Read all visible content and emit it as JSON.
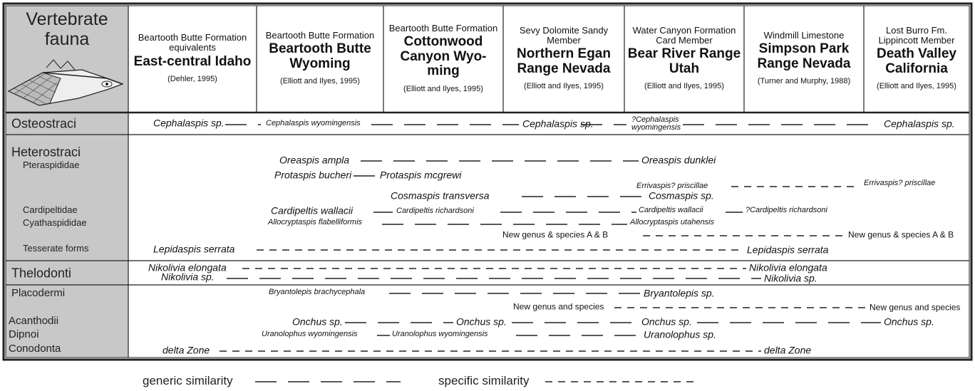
{
  "corner": "Vertebrate fauna",
  "columns": [
    {
      "formation": "Beartooth Butte Formation equivalents",
      "locality": "East-central Idaho",
      "reference": "(Dehler, 1995)"
    },
    {
      "formation": "Beartooth Butte Formation",
      "locality": "Beartooth Butte Wyoming",
      "reference": "(Elliott and Ilyes, 1995)"
    },
    {
      "formation": "Beartooth Butte Formation",
      "locality": "Cottonwood Canyon Wyo-ming",
      "reference": "(Elliott and Ilyes, 1995)"
    },
    {
      "formation": "Sevy Dolomite Sandy Member",
      "locality": "Northern Egan Range Nevada",
      "reference": "(Elliott and Ilyes, 1995)"
    },
    {
      "formation": "Water Canyon Formation Card Member",
      "locality": "Bear River Range Utah",
      "reference": "(Elliott and Ilyes, 1995)"
    },
    {
      "formation": "Windmill Limestone",
      "locality": "Simpson Park Range Nevada",
      "reference": "(Turner and Murphy, 1988)"
    },
    {
      "formation": "Lost Burro Fm. Lippincott Member",
      "locality": "Death Valley California",
      "reference": "(Elliott and Ilyes, 1995)"
    }
  ],
  "groups": [
    "Osteostraci",
    "Heterostraci",
    "Pteraspididae",
    "Cardipeltidae",
    "Cyathaspididae",
    "Tesserate forms",
    "Thelodonti",
    "Placodermi",
    "Acanthodii",
    "Dipnoi",
    "Conodonta"
  ],
  "taxa": [
    "Cephalaspis sp.",
    "Cephalaspis wyomingensis",
    "Cephalaspis sp.",
    "?Cephalaspis wyomingensis",
    "Cephalaspis sp.",
    "Oreaspis ampla",
    "Oreaspis dunklei",
    "Protaspis bucheri",
    "Protaspis mcgrewi",
    "Errivaspis? priscillae",
    "Errivaspis? priscillae",
    "Cosmaspis transversa",
    "Cosmaspis sp.",
    "Cardipeltis wallacii",
    "Cardipeltis richardsoni",
    "Cardipeltis wallacii",
    "?Cardipeltis richardsoni",
    "Allocryptaspis flabelliformis",
    "Allocryptaspis utahensis",
    "New genus & species A & B",
    "New genus & species A & B",
    "Lepidaspis serrata",
    "Lepidaspis serrata",
    "Nikolivia elongata",
    "Nikolivia elongata",
    "Nikolivia sp.",
    "Nikolivia sp.",
    "Bryantolepis brachycephala",
    "Bryantolepis sp.",
    "New genus and species",
    "New genus and species",
    "Onchus sp.",
    "Onchus sp.",
    "Onchus sp.",
    "Onchus sp.",
    "Uranolophus wyomingensis",
    "Uranolophus wyomingensis",
    "Uranolophus sp.",
    "delta Zone",
    "delta Zone"
  ],
  "legend": {
    "generic": "generic similarity",
    "specific": "specific similarity"
  }
}
